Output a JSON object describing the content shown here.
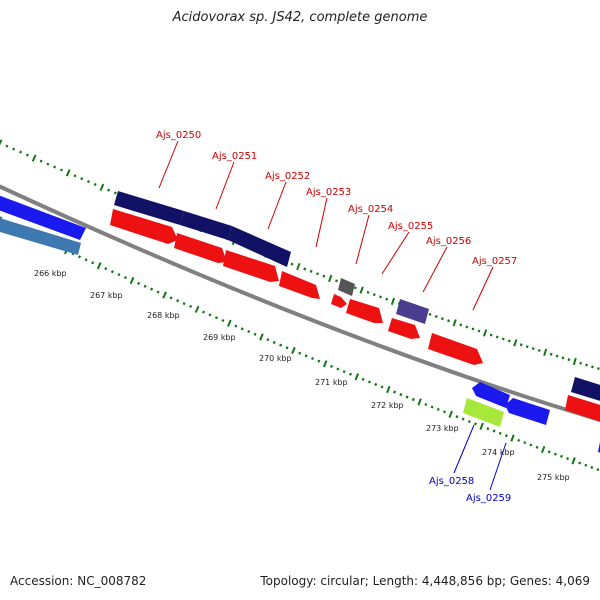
{
  "title": "Acidovorax sp. JS42, complete genome",
  "footer": {
    "accession": "Accession: NC_008782",
    "topology": "Topology: circular; Length: 4,448,856 bp; Genes: 4,069"
  },
  "colors": {
    "forward_label": "#cc0000",
    "reverse_label": "#0000cc",
    "cds_red": "#ee1111",
    "cds_navy": "#111166",
    "cds_blue": "#1a1aee",
    "cds_steel": "#3d78b0",
    "cds_gray": "#555555",
    "cds_purple": "#4a3d8f",
    "cds_lime": "#a8e83a",
    "backbone": "#808080",
    "tick": "#117711"
  },
  "kbp_labels": [
    "266 kbp",
    "267 kbp",
    "268 kbp",
    "269 kbp",
    "270 kbp",
    "271 kbp",
    "272 kbp",
    "273 kbp",
    "274 kbp",
    "275 kbp"
  ],
  "gene_labels_forward": [
    "Ajs_0250",
    "Ajs_0251",
    "Ajs_0252",
    "Ajs_0253",
    "Ajs_0254",
    "Ajs_0255",
    "Ajs_0256",
    "Ajs_0257"
  ],
  "gene_labels_reverse": [
    "Ajs_0258",
    "Ajs_0259"
  ]
}
